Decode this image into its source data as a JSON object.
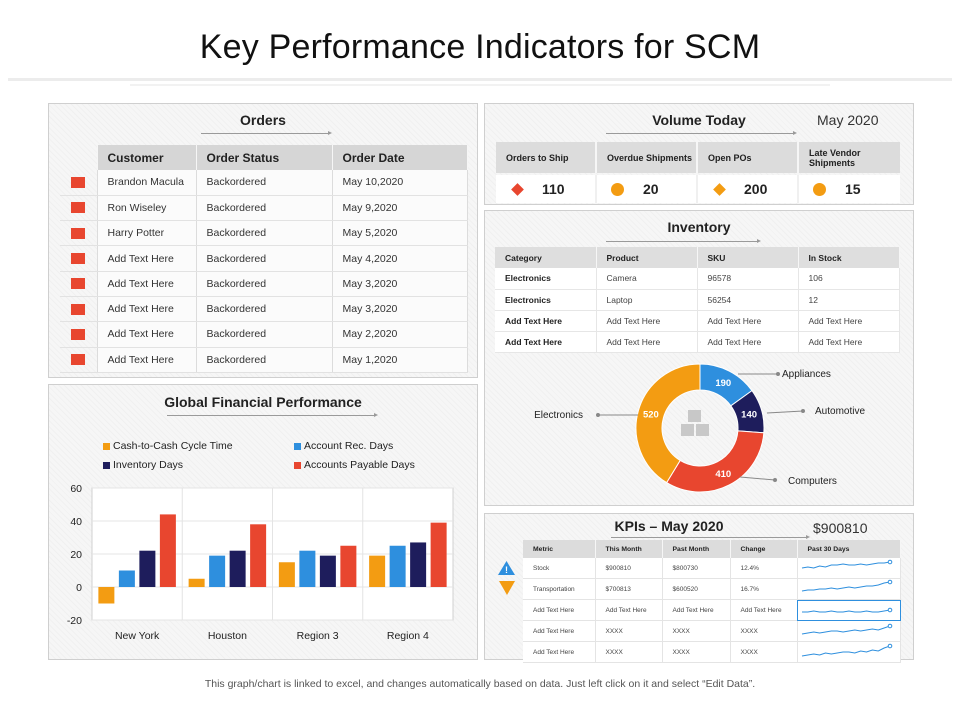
{
  "title": "Key Performance Indicators for SCM",
  "colors": {
    "orange": "#f39c12",
    "blue": "#2e8fde",
    "navy": "#1e1d5c",
    "red": "#e8462f",
    "flag": "#e8462f"
  },
  "orders": {
    "title": "Orders",
    "headers": [
      "Customer",
      "Order Status",
      "Order Date"
    ],
    "rows": [
      {
        "customer": "Brandon Macula",
        "status": "Backordered",
        "date": "May 10,2020"
      },
      {
        "customer": "Ron Wiseley",
        "status": "Backordered",
        "date": "May 9,2020"
      },
      {
        "customer": "Harry Potter",
        "status": "Backordered",
        "date": "May 5,2020"
      },
      {
        "customer": "Add Text Here",
        "status": "Backordered",
        "date": "May 4,2020"
      },
      {
        "customer": "Add Text Here",
        "status": "Backordered",
        "date": "May 3,2020"
      },
      {
        "customer": "Add Text Here",
        "status": "Backordered",
        "date": "May 3,2020"
      },
      {
        "customer": "Add Text Here",
        "status": "Backordered",
        "date": "May 2,2020"
      },
      {
        "customer": "Add Text Here",
        "status": "Backordered",
        "date": "May 1,2020"
      }
    ]
  },
  "volume": {
    "title": "Volume Today",
    "date": "May 2020",
    "headers": [
      "Orders to Ship",
      "Overdue Shipments",
      "Open POs",
      "Late Vendor Shipments"
    ],
    "values": [
      "110",
      "20",
      "200",
      "15"
    ]
  },
  "inventory": {
    "title": "Inventory",
    "headers": [
      "Category",
      "Product",
      "SKU",
      "In Stock"
    ],
    "rows": [
      [
        "Electronics",
        "Camera",
        "96578",
        "106"
      ],
      [
        "Electronics",
        "Laptop",
        "56254",
        "12"
      ],
      [
        "Add Text Here",
        "Add Text Here",
        "Add Text Here",
        "Add Text Here"
      ],
      [
        "Add Text Here",
        "Add Text Here",
        "Add Text Here",
        "Add Text Here"
      ]
    ],
    "donut": [
      {
        "label": "Appliances",
        "value": 190,
        "color": "#2e8fde"
      },
      {
        "label": "Automotive",
        "value": 140,
        "color": "#1e1d5c"
      },
      {
        "label": "Computers",
        "value": 410,
        "color": "#e8462f"
      },
      {
        "label": "Electronics",
        "value": 520,
        "color": "#f39c12"
      }
    ]
  },
  "financial": {
    "title": "Global Financial Performance"
  },
  "chart_data": {
    "type": "bar",
    "title": "Global Financial Performance",
    "categories": [
      "New York",
      "Houston",
      "Region 3",
      "Region 4"
    ],
    "series": [
      {
        "name": "Cash-to-Cash Cycle Time",
        "color": "#f39c12",
        "values": [
          -10,
          5,
          15,
          19
        ]
      },
      {
        "name": "Account Rec. Days",
        "color": "#2e8fde",
        "values": [
          10,
          19,
          22,
          25
        ]
      },
      {
        "name": "Inventory Days",
        "color": "#1e1d5c",
        "values": [
          22,
          22,
          19,
          27
        ]
      },
      {
        "name": "Accounts Payable Days",
        "color": "#e8462f",
        "values": [
          44,
          38,
          25,
          39
        ]
      }
    ],
    "ylim": [
      -20,
      60
    ],
    "yticks": [
      "60",
      "40",
      "20",
      "0",
      "-20"
    ],
    "xlabel": "",
    "ylabel": "",
    "legend": "top"
  },
  "kpis": {
    "title": "KPIs – May 2020",
    "amount": "$900810",
    "headers": [
      "Metric",
      "This Month",
      "Past Month",
      "Change",
      "Past 30 Days"
    ],
    "rows": [
      [
        "Stock",
        "$900810",
        "$800730",
        "12.4%"
      ],
      [
        "Transportation",
        "$700813",
        "$600520",
        "16.7%"
      ],
      [
        "Add Text Here",
        "Add Text Here",
        "Add Text Here",
        "Add Text Here"
      ],
      [
        "Add Text Here",
        "XXXX",
        "XXXX",
        "XXXX"
      ],
      [
        "Add Text Here",
        "XXXX",
        "XXXX",
        "XXXX"
      ]
    ],
    "icons": [
      "warning-icon",
      "down-arrow-icon"
    ]
  },
  "footer": "This graph/chart is linked to excel, and changes automatically based on data. Just left click on it and select “Edit Data”."
}
